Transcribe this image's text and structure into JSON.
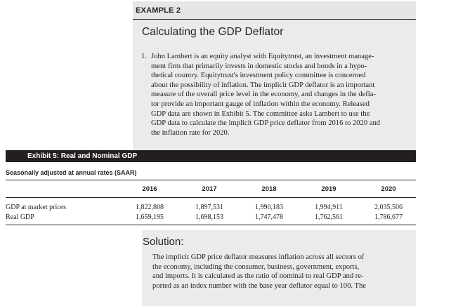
{
  "example": {
    "label": "EXAMPLE 2",
    "title": "Calculating the GDP Deflator",
    "item_number": "1.",
    "text_lines": [
      "John Lambert is an equity analyst with Equitytrust, an investment manage-",
      "ment firm that primarily invests in domestic stocks and bonds in a hypo-",
      "thetical country. Equitytrust's investment policy committee is concerned",
      "about the possibility of inflation. The implicit GDP deflator is an important",
      "measure of the overall price level in the economy, and changes in the defla-",
      "tor provide an important gauge of inflation within the economy. Released",
      "GDP data are shown in Exhibit 5. The committee asks Lambert to use the",
      "GDP data to calculate the implicit GDP price deflator from 2016 to 2020 and",
      "the inflation rate for 2020."
    ]
  },
  "exhibit": {
    "title": "Exhibit 5: Real and Nominal GDP",
    "subtitle": "Seasonally adjusted at annual rates (SAAR)",
    "years": [
      "2016",
      "2017",
      "2018",
      "2019",
      "2020"
    ],
    "rows": [
      {
        "label": "GDP at market prices",
        "values": [
          "1,822,808",
          "1,897,531",
          "1,990,183",
          "1,994,911",
          "2,035,506"
        ]
      },
      {
        "label": "Real GDP",
        "values": [
          "1,659,195",
          "1,698,153",
          "1,747,478",
          "1,762,561",
          "1,786,677"
        ]
      }
    ]
  },
  "solution": {
    "title": "Solution:",
    "text_lines": [
      "The implicit GDP price deflator measures inflation across all sectors of",
      "the economy, including the consumer, business, government, exports,",
      "and imports. It is calculated as the ratio of nominal to real GDP and re-",
      "ported as an index number with the base year deflator equal to 100. The"
    ]
  }
}
